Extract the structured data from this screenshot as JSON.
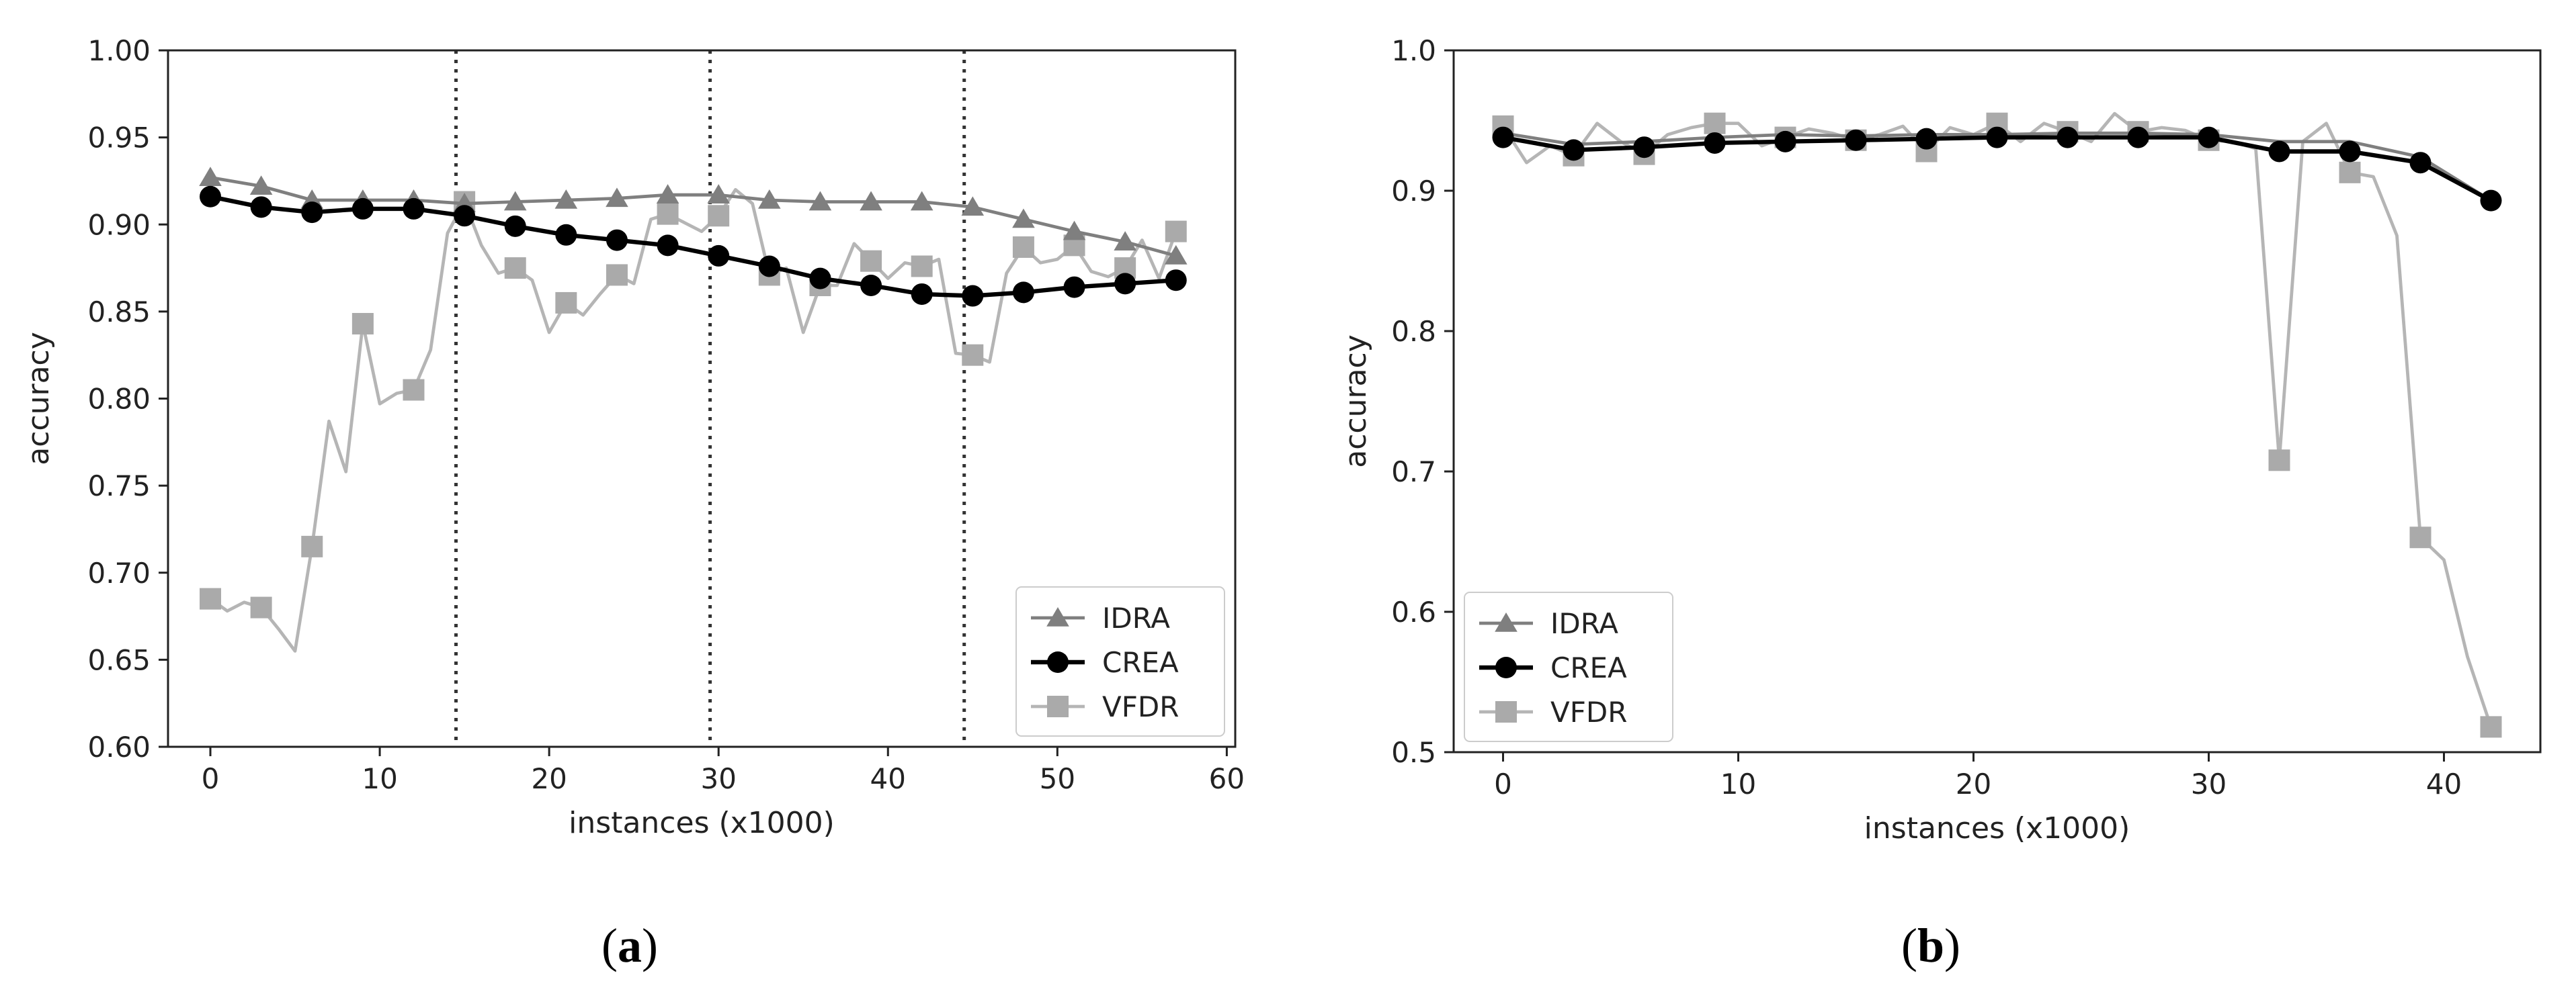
{
  "colors": {
    "idra": "#7f7f7f",
    "crea": "#000000",
    "vfdr": "#aaaaaa",
    "vfdr_line": "#b5b5b5",
    "frame": "#222222",
    "drift": "#333333"
  },
  "chart_data": [
    {
      "type": "line",
      "panel_label": "(a)",
      "panel_letter": "a",
      "xlabel": "instances (x1000)",
      "ylabel": "accuracy",
      "xlim": [
        -2.5,
        60.5
      ],
      "ylim": [
        0.6,
        1.0
      ],
      "xticks": [
        0,
        10,
        20,
        30,
        40,
        50,
        60
      ],
      "xtick_labels": [
        "0",
        "10",
        "20",
        "30",
        "40",
        "50",
        "60"
      ],
      "yticks": [
        0.6,
        0.65,
        0.7,
        0.75,
        0.8,
        0.85,
        0.9,
        0.95,
        1.0
      ],
      "ytick_labels": [
        "0.60",
        "0.65",
        "0.70",
        "0.75",
        "0.80",
        "0.85",
        "0.90",
        "0.95",
        "1.00"
      ],
      "drift_lines_x": [
        14.5,
        29.5,
        44.5
      ],
      "legend_position": "lower-right",
      "series": [
        {
          "name": "IDRA",
          "marker": "triangle",
          "color_key": "idra",
          "width": 3,
          "x": [
            0,
            3,
            6,
            9,
            12,
            15,
            18,
            21,
            24,
            27,
            30,
            33,
            36,
            39,
            42,
            45,
            48,
            51,
            54,
            57
          ],
          "values": [
            0.927,
            0.922,
            0.914,
            0.914,
            0.914,
            0.912,
            0.913,
            0.914,
            0.915,
            0.917,
            0.917,
            0.914,
            0.913,
            0.913,
            0.913,
            0.91,
            0.903,
            0.896,
            0.89,
            0.882
          ],
          "markers": true
        },
        {
          "name": "CREA",
          "marker": "circle",
          "color_key": "crea",
          "width": 4,
          "x": [
            0,
            3,
            6,
            9,
            12,
            15,
            18,
            21,
            24,
            27,
            30,
            33,
            36,
            39,
            42,
            45,
            48,
            51,
            54,
            57
          ],
          "values": [
            0.916,
            0.91,
            0.907,
            0.909,
            0.909,
            0.905,
            0.899,
            0.894,
            0.891,
            0.888,
            0.882,
            0.876,
            0.869,
            0.865,
            0.86,
            0.859,
            0.861,
            0.864,
            0.866,
            0.868
          ],
          "markers": true
        },
        {
          "name": "VFDR",
          "marker": "square",
          "color_key": "vfdr",
          "width": 3,
          "x": [
            0,
            1,
            2,
            3,
            4,
            5,
            6,
            7,
            8,
            9,
            10,
            11,
            12,
            13,
            14,
            15,
            16,
            17,
            18,
            19,
            20,
            21,
            22,
            23,
            24,
            25,
            26,
            27,
            28,
            29,
            30,
            31,
            32,
            33,
            34,
            35,
            36,
            37,
            38,
            39,
            40,
            41,
            42,
            43,
            44,
            45,
            46,
            47,
            48,
            49,
            50,
            51,
            52,
            53,
            54,
            55,
            56,
            57
          ],
          "values": [
            0.685,
            0.678,
            0.683,
            0.68,
            0.668,
            0.655,
            0.715,
            0.787,
            0.758,
            0.843,
            0.797,
            0.803,
            0.805,
            0.828,
            0.895,
            0.913,
            0.888,
            0.872,
            0.875,
            0.868,
            0.838,
            0.855,
            0.848,
            0.86,
            0.871,
            0.866,
            0.903,
            0.906,
            0.901,
            0.896,
            0.905,
            0.92,
            0.912,
            0.871,
            0.875,
            0.838,
            0.865,
            0.865,
            0.889,
            0.879,
            0.869,
            0.878,
            0.876,
            0.88,
            0.826,
            0.825,
            0.821,
            0.872,
            0.887,
            0.878,
            0.88,
            0.888,
            0.873,
            0.87,
            0.875,
            0.891,
            0.869,
            0.896
          ],
          "marker_x": [
            0,
            3,
            6,
            9,
            12,
            15,
            18,
            21,
            24,
            27,
            30,
            33,
            36,
            39,
            42,
            45,
            48,
            51,
            54,
            57
          ],
          "marker_values": [
            0.685,
            0.68,
            0.715,
            0.843,
            0.805,
            0.913,
            0.875,
            0.855,
            0.871,
            0.906,
            0.905,
            0.871,
            0.865,
            0.879,
            0.876,
            0.825,
            0.887,
            0.888,
            0.875,
            0.896
          ],
          "markers": true
        }
      ]
    },
    {
      "type": "line",
      "panel_label": "(b)",
      "panel_letter": "b",
      "xlabel": "instances (x1000)",
      "ylabel": "accuracy",
      "xlim": [
        -2.1,
        44.1
      ],
      "ylim": [
        0.5,
        1.0
      ],
      "xticks": [
        0,
        10,
        20,
        30,
        40
      ],
      "xtick_labels": [
        "0",
        "10",
        "20",
        "30",
        "40"
      ],
      "yticks": [
        0.5,
        0.6,
        0.7,
        0.8,
        0.9,
        1.0
      ],
      "ytick_labels": [
        "0.5",
        "0.6",
        "0.7",
        "0.8",
        "0.9",
        "1.0"
      ],
      "drift_lines_x": [],
      "legend_position": "lower-left",
      "series": [
        {
          "name": "IDRA",
          "marker": "triangle",
          "color_key": "idra",
          "width": 3,
          "x": [
            0,
            3,
            6,
            9,
            12,
            15,
            18,
            21,
            24,
            27,
            30,
            33,
            36,
            39,
            42
          ],
          "values": [
            0.941,
            0.933,
            0.935,
            0.938,
            0.94,
            0.939,
            0.94,
            0.94,
            0.941,
            0.941,
            0.94,
            0.935,
            0.935,
            0.924,
            0.893
          ],
          "markers": false
        },
        {
          "name": "CREA",
          "marker": "circle",
          "color_key": "crea",
          "width": 4,
          "x": [
            0,
            3,
            6,
            9,
            12,
            15,
            18,
            21,
            24,
            27,
            30,
            33,
            36,
            39,
            42
          ],
          "values": [
            0.938,
            0.929,
            0.931,
            0.934,
            0.935,
            0.936,
            0.937,
            0.938,
            0.938,
            0.938,
            0.938,
            0.928,
            0.928,
            0.92,
            0.893
          ],
          "markers": true
        },
        {
          "name": "VFDR",
          "marker": "square",
          "color_key": "vfdr",
          "width": 3,
          "x": [
            0,
            1,
            2,
            3,
            4,
            5,
            6,
            7,
            8,
            9,
            10,
            11,
            12,
            13,
            14,
            15,
            16,
            17,
            18,
            19,
            20,
            21,
            22,
            23,
            24,
            25,
            26,
            27,
            28,
            29,
            30,
            31,
            32,
            33,
            34,
            35,
            36,
            37,
            38,
            39,
            40,
            41,
            42
          ],
          "values": [
            0.946,
            0.92,
            0.932,
            0.925,
            0.948,
            0.935,
            0.926,
            0.94,
            0.945,
            0.948,
            0.948,
            0.932,
            0.938,
            0.944,
            0.941,
            0.936,
            0.94,
            0.946,
            0.928,
            0.945,
            0.94,
            0.948,
            0.935,
            0.948,
            0.942,
            0.935,
            0.955,
            0.942,
            0.945,
            0.943,
            0.936,
            0.935,
            0.93,
            0.708,
            0.935,
            0.948,
            0.913,
            0.91,
            0.868,
            0.653,
            0.637,
            0.568,
            0.518
          ],
          "marker_x": [
            0,
            3,
            6,
            9,
            12,
            15,
            18,
            21,
            24,
            27,
            30,
            33,
            36,
            39,
            42
          ],
          "marker_values": [
            0.946,
            0.925,
            0.926,
            0.948,
            0.938,
            0.936,
            0.928,
            0.948,
            0.942,
            0.942,
            0.936,
            0.708,
            0.913,
            0.653,
            0.518
          ],
          "markers": true
        }
      ]
    }
  ]
}
